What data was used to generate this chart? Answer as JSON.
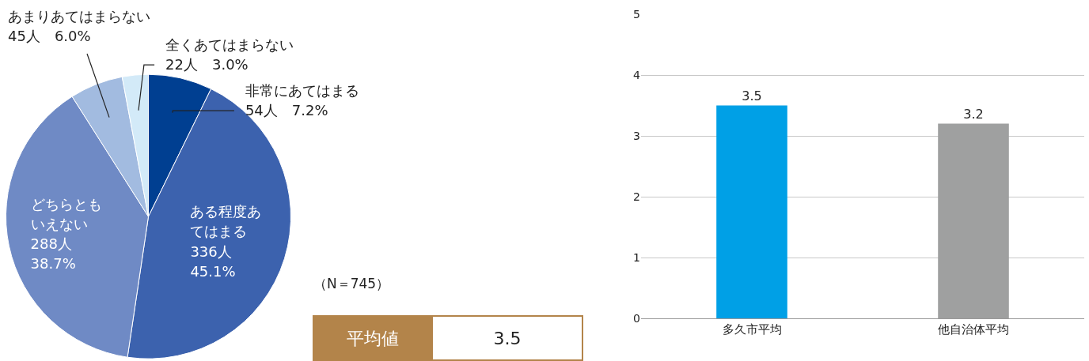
{
  "chart_data": [
    {
      "type": "pie",
      "categories": [
        "非常にあてはまる",
        "ある程度あてはまる",
        "どちらともいえない",
        "あまりあてはまらない",
        "全くあてはまらない"
      ],
      "values": [
        54,
        336,
        288,
        45,
        22
      ],
      "value_labels": [
        "54人　7.2%",
        "336人\n45.1%",
        "288人\n38.7%",
        "45人　6.0%",
        "22人　3.0%"
      ],
      "colors": [
        "#003f91",
        "#3c62ae",
        "#6f8ac5",
        "#a2bbe0",
        "#d3eaf8"
      ],
      "annotations": [
        "（N＝745）",
        "平均値",
        "3.5"
      ]
    },
    {
      "type": "bar",
      "categories": [
        "多久市平均",
        "他自治体平均"
      ],
      "values": [
        3.5,
        3.2
      ],
      "colors": [
        "#00a0e6",
        "#9fa0a0"
      ],
      "ylim": [
        0,
        5
      ],
      "yticks": [
        0,
        1,
        2,
        3,
        4,
        5
      ],
      "grid": "y",
      "data_labels": true
    }
  ]
}
